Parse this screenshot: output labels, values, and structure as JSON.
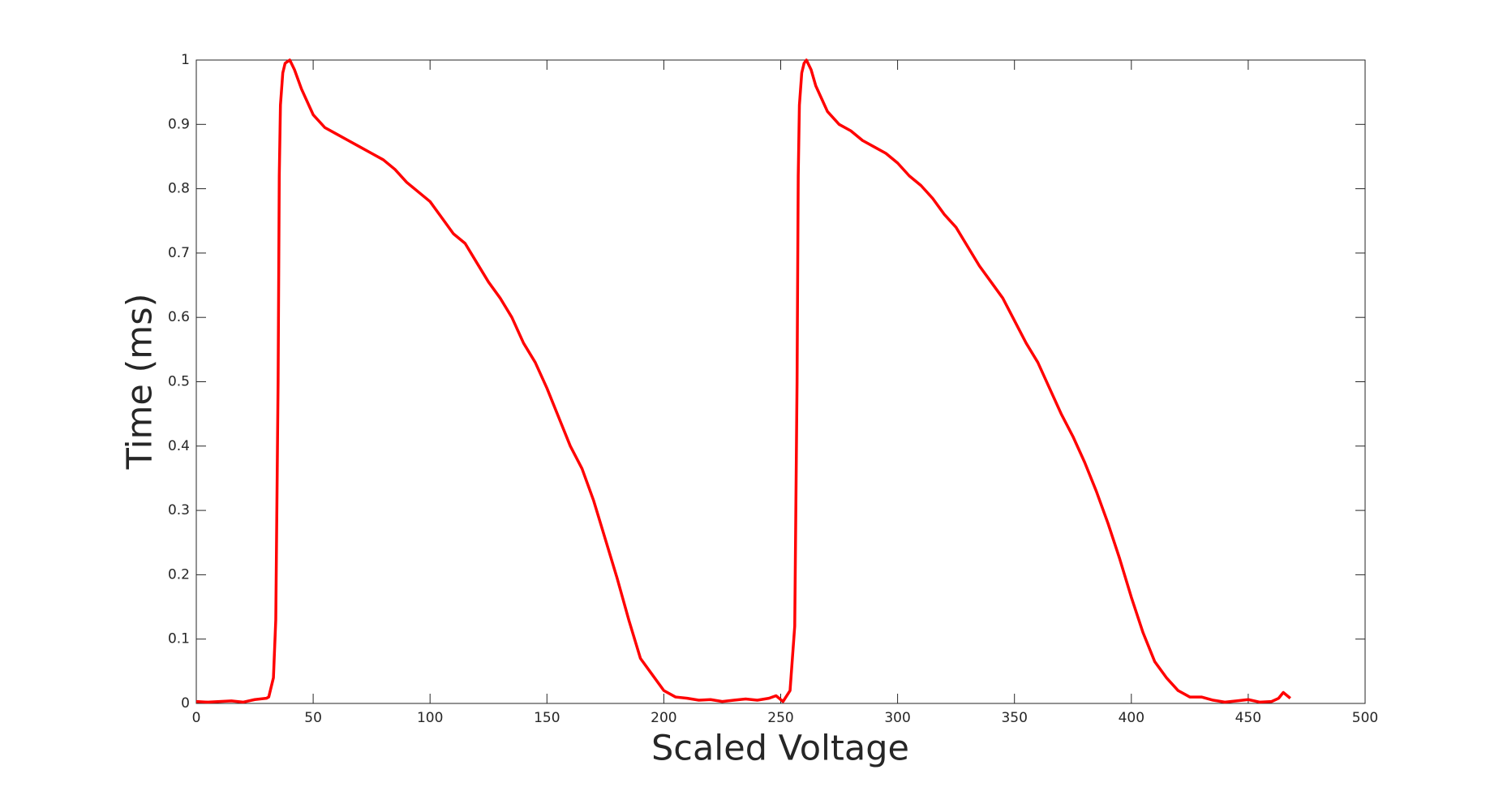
{
  "chart_data": {
    "type": "line",
    "x_label": "Scaled Voltage",
    "y_label": "Time (ms)",
    "xlim": [
      0,
      500
    ],
    "ylim": [
      0,
      1
    ],
    "xticks": [
      0,
      50,
      100,
      150,
      200,
      250,
      300,
      350,
      400,
      450,
      500
    ],
    "yticks": [
      0,
      0.1,
      0.2,
      0.3,
      0.4,
      0.5,
      0.6,
      0.7,
      0.8,
      0.9,
      1
    ],
    "grid": false,
    "series": [
      {
        "color": "#ff0000",
        "x": [
          0,
          5,
          10,
          15,
          20,
          25,
          30,
          31,
          33,
          34,
          35,
          35.5,
          36,
          37,
          38,
          40,
          42,
          45,
          50,
          55,
          60,
          65,
          70,
          75,
          80,
          85,
          90,
          95,
          100,
          105,
          110,
          115,
          120,
          125,
          130,
          135,
          140,
          145,
          150,
          155,
          160,
          165,
          170,
          175,
          180,
          185,
          190,
          195,
          200,
          205,
          210,
          215,
          220,
          225,
          230,
          235,
          240,
          245,
          248,
          251,
          254,
          256,
          257,
          257.5,
          258,
          259,
          260,
          261,
          263,
          265,
          270,
          275,
          280,
          285,
          290,
          295,
          300,
          305,
          310,
          315,
          320,
          325,
          330,
          335,
          340,
          345,
          350,
          355,
          360,
          365,
          370,
          375,
          380,
          385,
          390,
          395,
          400,
          405,
          410,
          415,
          420,
          425,
          430,
          435,
          440,
          445,
          450,
          455,
          460,
          463,
          465,
          468
        ],
        "values": [
          0.003,
          0.002,
          0.003,
          0.004,
          0.002,
          0.006,
          0.008,
          0.01,
          0.04,
          0.13,
          0.5,
          0.82,
          0.93,
          0.98,
          0.995,
          1.0,
          0.985,
          0.955,
          0.915,
          0.895,
          0.885,
          0.875,
          0.865,
          0.855,
          0.845,
          0.83,
          0.81,
          0.795,
          0.78,
          0.755,
          0.73,
          0.715,
          0.685,
          0.655,
          0.63,
          0.6,
          0.56,
          0.53,
          0.49,
          0.445,
          0.4,
          0.365,
          0.315,
          0.255,
          0.195,
          0.13,
          0.07,
          0.045,
          0.02,
          0.01,
          0.008,
          0.005,
          0.006,
          0.003,
          0.005,
          0.007,
          0.005,
          0.008,
          0.012,
          0.003,
          0.02,
          0.12,
          0.5,
          0.82,
          0.93,
          0.98,
          0.995,
          1.0,
          0.985,
          0.96,
          0.92,
          0.9,
          0.89,
          0.875,
          0.865,
          0.855,
          0.84,
          0.82,
          0.805,
          0.785,
          0.76,
          0.74,
          0.71,
          0.68,
          0.655,
          0.63,
          0.595,
          0.56,
          0.53,
          0.49,
          0.45,
          0.415,
          0.375,
          0.33,
          0.28,
          0.225,
          0.165,
          0.11,
          0.065,
          0.04,
          0.02,
          0.01,
          0.01,
          0.005,
          0.002,
          0.004,
          0.006,
          0.002,
          0.003,
          0.008,
          0.017,
          0.008
        ]
      }
    ]
  }
}
